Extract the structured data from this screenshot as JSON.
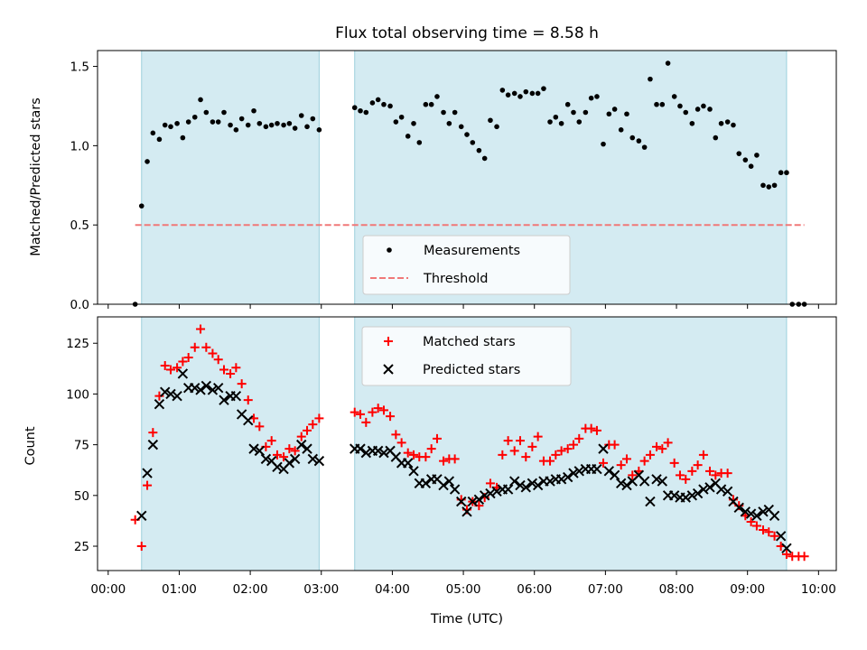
{
  "chart_data": [
    {
      "type": "scatter",
      "title": "Flux total observing time = 8.58 h",
      "xlabel": "",
      "ylabel": "Matched/Predicted stars",
      "xlim_hours": [
        -0.15,
        10.25
      ],
      "ylim": [
        0,
        1.6
      ],
      "yticks": [
        0.0,
        0.5,
        1.0,
        1.5
      ],
      "ytick_labels": [
        "0.0",
        "0.5",
        "1.0",
        "1.5"
      ],
      "shaded_intervals_hours": [
        [
          0.47,
          2.97
        ],
        [
          3.47,
          9.55
        ]
      ],
      "legend": {
        "position": "lower center",
        "entries": [
          "Measurements",
          "Threshold"
        ]
      },
      "threshold": {
        "name": "Threshold",
        "value": 0.5,
        "x_range_hours": [
          0.38,
          9.8
        ],
        "color": "#f07878",
        "style": "dashed"
      },
      "series": [
        {
          "name": "Measurements",
          "marker": "dot",
          "color": "#000000",
          "x_hours": [
            0.38,
            0.47,
            0.55,
            0.63,
            0.72,
            0.8,
            0.88,
            0.97,
            1.05,
            1.13,
            1.22,
            1.3,
            1.38,
            1.47,
            1.55,
            1.63,
            1.72,
            1.8,
            1.88,
            1.97,
            2.05,
            2.13,
            2.22,
            2.3,
            2.38,
            2.47,
            2.55,
            2.63,
            2.72,
            2.8,
            2.88,
            2.97,
            3.47,
            3.55,
            3.63,
            3.72,
            3.8,
            3.88,
            3.97,
            4.05,
            4.13,
            4.22,
            4.3,
            4.38,
            4.47,
            4.55,
            4.63,
            4.72,
            4.8,
            4.88,
            4.97,
            5.05,
            5.13,
            5.22,
            5.3,
            5.38,
            5.47,
            5.55,
            5.63,
            5.72,
            5.8,
            5.88,
            5.97,
            6.05,
            6.13,
            6.22,
            6.3,
            6.38,
            6.47,
            6.55,
            6.63,
            6.72,
            6.8,
            6.88,
            6.97,
            7.05,
            7.13,
            7.22,
            7.3,
            7.38,
            7.47,
            7.55,
            7.63,
            7.72,
            7.8,
            7.88,
            7.97,
            8.05,
            8.13,
            8.22,
            8.3,
            8.38,
            8.47,
            8.55,
            8.63,
            8.72,
            8.8,
            8.88,
            8.97,
            9.05,
            9.13,
            9.22,
            9.3,
            9.38,
            9.47,
            9.55,
            9.63,
            9.72,
            9.8
          ],
          "y": [
            0.0,
            0.62,
            0.9,
            1.08,
            1.04,
            1.13,
            1.12,
            1.14,
            1.05,
            1.15,
            1.18,
            1.29,
            1.21,
            1.15,
            1.15,
            1.21,
            1.13,
            1.1,
            1.17,
            1.13,
            1.22,
            1.14,
            1.12,
            1.13,
            1.14,
            1.13,
            1.14,
            1.11,
            1.19,
            1.12,
            1.17,
            1.1,
            1.24,
            1.22,
            1.21,
            1.27,
            1.29,
            1.26,
            1.25,
            1.15,
            1.18,
            1.06,
            1.14,
            1.02,
            1.26,
            1.26,
            1.31,
            1.21,
            1.14,
            1.21,
            1.12,
            1.07,
            1.02,
            0.97,
            0.92,
            1.16,
            1.12,
            1.35,
            1.32,
            1.33,
            1.31,
            1.34,
            1.33,
            1.33,
            1.36,
            1.15,
            1.18,
            1.14,
            1.26,
            1.21,
            1.15,
            1.21,
            1.3,
            1.31,
            1.01,
            1.2,
            1.23,
            1.1,
            1.2,
            1.05,
            1.03,
            0.99,
            1.42,
            1.26,
            1.26,
            1.52,
            1.31,
            1.25,
            1.21,
            1.14,
            1.23,
            1.25,
            1.23,
            1.05,
            1.14,
            1.15,
            1.13,
            0.95,
            0.91,
            0.87,
            0.94,
            0.75,
            0.74,
            0.75,
            0.83,
            0.83,
            0.0,
            0.0,
            0.0
          ]
        }
      ]
    },
    {
      "type": "scatter",
      "title": "",
      "xlabel": "Time (UTC)",
      "ylabel": "Count",
      "xlim_hours": [
        -0.15,
        10.25
      ],
      "ylim": [
        13,
        138
      ],
      "yticks": [
        25,
        50,
        75,
        100,
        125
      ],
      "ytick_labels": [
        "25",
        "50",
        "75",
        "100",
        "125"
      ],
      "xticks_hours": [
        0,
        1,
        2,
        3,
        4,
        5,
        6,
        7,
        8,
        9,
        10
      ],
      "xtick_labels": [
        "00:00",
        "01:00",
        "02:00",
        "03:00",
        "04:00",
        "05:00",
        "06:00",
        "07:00",
        "08:00",
        "09:00",
        "10:00"
      ],
      "shaded_intervals_hours": [
        [
          0.47,
          2.97
        ],
        [
          3.47,
          9.55
        ]
      ],
      "legend": {
        "position": "upper center",
        "entries": [
          "Matched stars",
          "Predicted stars"
        ]
      },
      "series": [
        {
          "name": "Matched stars",
          "marker": "plus",
          "color": "#ff0000",
          "x_hours": [
            0.38,
            0.47,
            0.55,
            0.63,
            0.72,
            0.8,
            0.88,
            0.97,
            1.05,
            1.13,
            1.22,
            1.3,
            1.38,
            1.47,
            1.55,
            1.63,
            1.72,
            1.8,
            1.88,
            1.97,
            2.05,
            2.13,
            2.22,
            2.3,
            2.38,
            2.47,
            2.55,
            2.63,
            2.72,
            2.8,
            2.88,
            2.97,
            3.47,
            3.55,
            3.63,
            3.72,
            3.8,
            3.88,
            3.97,
            4.05,
            4.13,
            4.22,
            4.3,
            4.38,
            4.47,
            4.55,
            4.63,
            4.72,
            4.8,
            4.88,
            4.97,
            5.05,
            5.13,
            5.22,
            5.3,
            5.38,
            5.47,
            5.55,
            5.63,
            5.72,
            5.8,
            5.88,
            5.97,
            6.05,
            6.13,
            6.22,
            6.3,
            6.38,
            6.47,
            6.55,
            6.63,
            6.72,
            6.8,
            6.88,
            6.97,
            7.05,
            7.13,
            7.22,
            7.3,
            7.38,
            7.47,
            7.55,
            7.63,
            7.72,
            7.8,
            7.88,
            7.97,
            8.05,
            8.13,
            8.22,
            8.3,
            8.38,
            8.47,
            8.55,
            8.63,
            8.72,
            8.8,
            8.88,
            8.97,
            9.05,
            9.13,
            9.22,
            9.3,
            9.38,
            9.47,
            9.55,
            9.63,
            9.72,
            9.8
          ],
          "y": [
            38,
            25,
            55,
            81,
            99,
            114,
            112,
            113,
            116,
            118,
            123,
            132,
            123,
            120,
            117,
            112,
            110,
            113,
            105,
            97,
            88,
            84,
            74,
            77,
            70,
            69,
            73,
            72,
            79,
            82,
            85,
            88,
            91,
            90,
            86,
            91,
            93,
            92,
            89,
            80,
            76,
            71,
            70,
            69,
            69,
            73,
            78,
            67,
            68,
            68,
            48,
            43,
            47,
            45,
            49,
            56,
            54,
            70,
            77,
            72,
            77,
            69,
            74,
            79,
            67,
            67,
            70,
            72,
            73,
            75,
            78,
            83,
            83,
            82,
            66,
            75,
            75,
            65,
            68,
            60,
            62,
            67,
            70,
            74,
            73,
            76,
            66,
            60,
            58,
            62,
            65,
            70,
            62,
            60,
            61,
            61,
            48,
            45,
            40,
            37,
            35,
            33,
            32,
            30,
            25,
            21,
            20,
            20,
            20
          ],
          "note": ""
        },
        {
          "name": "Predicted stars",
          "marker": "x",
          "color": "#000000",
          "x_hours": [
            0.47,
            0.55,
            0.63,
            0.72,
            0.8,
            0.88,
            0.97,
            1.05,
            1.13,
            1.22,
            1.3,
            1.38,
            1.47,
            1.55,
            1.63,
            1.72,
            1.8,
            1.88,
            1.97,
            2.05,
            2.13,
            2.22,
            2.3,
            2.38,
            2.47,
            2.55,
            2.63,
            2.72,
            2.8,
            2.88,
            2.97,
            3.47,
            3.55,
            3.63,
            3.72,
            3.8,
            3.88,
            3.97,
            4.05,
            4.13,
            4.22,
            4.3,
            4.38,
            4.47,
            4.55,
            4.63,
            4.72,
            4.8,
            4.88,
            4.97,
            5.05,
            5.13,
            5.22,
            5.3,
            5.38,
            5.47,
            5.55,
            5.63,
            5.72,
            5.8,
            5.88,
            5.97,
            6.05,
            6.13,
            6.22,
            6.3,
            6.38,
            6.47,
            6.55,
            6.63,
            6.72,
            6.8,
            6.88,
            6.97,
            7.05,
            7.13,
            7.22,
            7.3,
            7.38,
            7.47,
            7.55,
            7.63,
            7.72,
            7.8,
            7.88,
            7.97,
            8.05,
            8.13,
            8.22,
            8.3,
            8.38,
            8.47,
            8.55,
            8.63,
            8.72,
            8.8,
            8.88,
            8.97,
            9.05,
            9.13,
            9.22,
            9.3,
            9.38,
            9.47,
            9.55
          ],
          "y": [
            40,
            61,
            75,
            95,
            101,
            100,
            99,
            110,
            103,
            103,
            102,
            104,
            102,
            103,
            97,
            99,
            99,
            90,
            87,
            73,
            72,
            68,
            67,
            64,
            63,
            66,
            68,
            75,
            73,
            68,
            67,
            73,
            73,
            71,
            72,
            72,
            71,
            72,
            69,
            66,
            66,
            62,
            56,
            56,
            58,
            58,
            55,
            57,
            53,
            47,
            42,
            47,
            48,
            50,
            51,
            52,
            53,
            53,
            57,
            55,
            54,
            56,
            55,
            57,
            57,
            58,
            58,
            59,
            61,
            62,
            63,
            63,
            63,
            73,
            62,
            60,
            56,
            55,
            57,
            60,
            57,
            47,
            58,
            57,
            50,
            50,
            49,
            49,
            50,
            51,
            53,
            54,
            56,
            53,
            52,
            47,
            44,
            42,
            41,
            40,
            42,
            43,
            40,
            30,
            24
          ]
        }
      ]
    }
  ]
}
